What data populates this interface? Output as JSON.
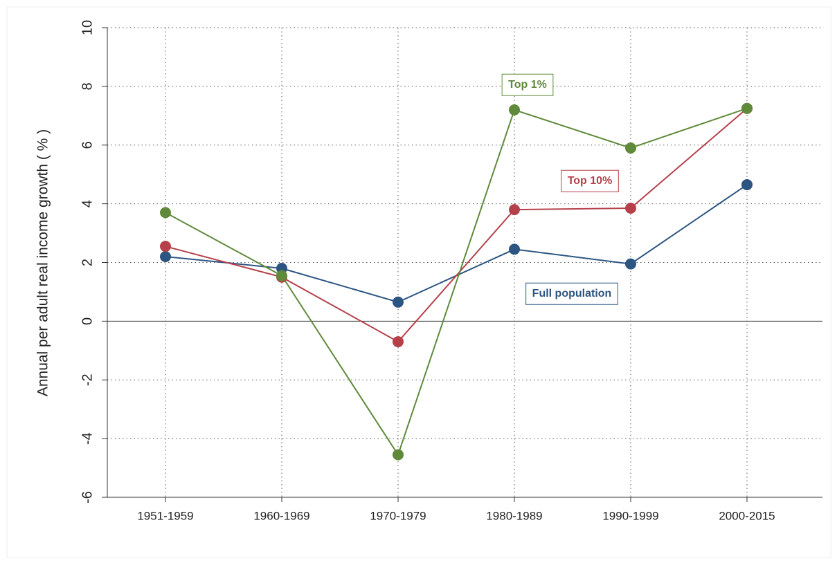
{
  "chart_data": {
    "type": "line",
    "y_label": "Annual per adult real income growth ( % )",
    "categories": [
      "1951-1959",
      "1960-1969",
      "1970-1979",
      "1980-1989",
      "1990-1999",
      "2000-2015"
    ],
    "series": [
      {
        "name": "Full population",
        "color": "#2c5582",
        "values": [
          2.2,
          1.8,
          0.65,
          2.45,
          1.95,
          4.65
        ]
      },
      {
        "name": "Top 10%",
        "color": "#b5404a",
        "values": [
          2.55,
          1.5,
          -0.7,
          3.8,
          3.85,
          7.25
        ]
      },
      {
        "name": "Top 1%",
        "color": "#5f8a3a",
        "values": [
          3.7,
          1.55,
          -4.55,
          7.2,
          5.9,
          7.25
        ]
      }
    ],
    "ylim": [
      -6,
      10
    ],
    "yticks": [
      -6,
      -4,
      -2,
      0,
      2,
      4,
      6,
      8,
      10
    ],
    "grid": true
  }
}
